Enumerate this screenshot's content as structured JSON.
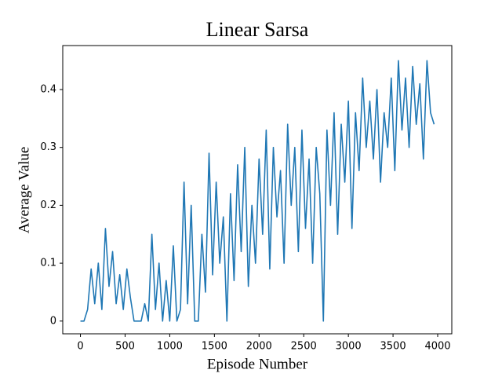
{
  "chart_data": {
    "type": "line",
    "title": "Linear Sarsa",
    "x_label": "Episode Number",
    "y_label": "Average Value",
    "x": [
      0,
      40,
      80,
      120,
      160,
      200,
      240,
      280,
      320,
      360,
      400,
      440,
      480,
      520,
      560,
      600,
      640,
      680,
      720,
      760,
      800,
      840,
      880,
      920,
      960,
      1000,
      1040,
      1080,
      1120,
      1160,
      1200,
      1240,
      1280,
      1320,
      1360,
      1400,
      1440,
      1480,
      1520,
      1560,
      1600,
      1640,
      1680,
      1720,
      1760,
      1800,
      1840,
      1880,
      1920,
      1960,
      2000,
      2040,
      2080,
      2120,
      2160,
      2200,
      2240,
      2280,
      2320,
      2360,
      2400,
      2440,
      2480,
      2520,
      2560,
      2600,
      2640,
      2680,
      2720,
      2760,
      2800,
      2840,
      2880,
      2920,
      2960,
      3000,
      3040,
      3080,
      3120,
      3160,
      3200,
      3240,
      3280,
      3320,
      3360,
      3400,
      3440,
      3480,
      3520,
      3560,
      3600,
      3640,
      3680,
      3720,
      3760,
      3800,
      3840,
      3880,
      3920,
      3960
    ],
    "series": [
      {
        "name": "Average Value",
        "color": "#1f77b4",
        "values": [
          0,
          0,
          0.02,
          0.09,
          0.03,
          0.1,
          0.02,
          0.16,
          0.06,
          0.12,
          0.03,
          0.08,
          0.02,
          0.09,
          0.04,
          0,
          0,
          0,
          0.03,
          0,
          0.15,
          0.02,
          0.1,
          0,
          0.07,
          0,
          0.13,
          0,
          0.02,
          0.24,
          0.03,
          0.2,
          0,
          0,
          0.15,
          0.05,
          0.29,
          0.08,
          0.24,
          0.1,
          0.18,
          0,
          0.22,
          0.07,
          0.27,
          0.12,
          0.3,
          0.06,
          0.2,
          0.1,
          0.28,
          0.15,
          0.33,
          0.09,
          0.3,
          0.18,
          0.26,
          0.1,
          0.34,
          0.2,
          0.3,
          0.12,
          0.33,
          0.16,
          0.28,
          0.1,
          0.3,
          0.22,
          0,
          0.33,
          0.2,
          0.36,
          0.15,
          0.34,
          0.24,
          0.38,
          0.16,
          0.36,
          0.26,
          0.42,
          0.3,
          0.38,
          0.28,
          0.4,
          0.24,
          0.36,
          0.3,
          0.42,
          0.26,
          0.45,
          0.33,
          0.42,
          0.3,
          0.44,
          0.34,
          0.41,
          0.28,
          0.45,
          0.36,
          0.34
        ]
      }
    ],
    "xlim": [
      -198,
      4158
    ],
    "xticks": [
      0,
      500,
      1000,
      1500,
      2000,
      2500,
      3000,
      3500,
      4000
    ],
    "ylim": [
      -0.022,
      0.476
    ],
    "yticks": [
      0.0,
      0.1,
      0.2,
      0.3,
      0.4
    ]
  }
}
